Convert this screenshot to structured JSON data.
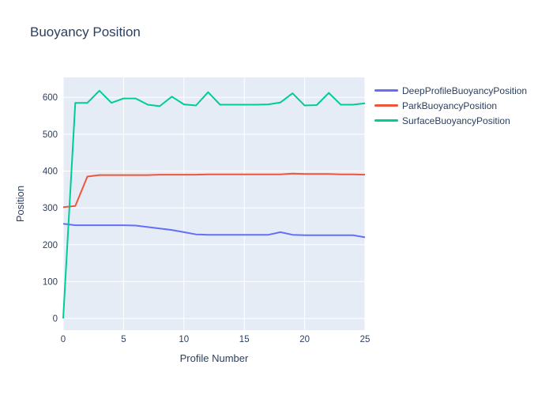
{
  "title": "Buoyancy Position",
  "colors": {
    "text": "#2a3f5f",
    "plot_background": "#E5ECF6",
    "grid": "#FFFFFF",
    "paper_background": "#FFFFFF"
  },
  "chart_data": {
    "type": "line",
    "title": "Buoyancy Position",
    "xlabel": "Profile Number",
    "ylabel": "Position",
    "xlim": [
      0,
      25
    ],
    "ylim": [
      -32,
      654
    ],
    "x_ticks": [
      0,
      5,
      10,
      15,
      20,
      25
    ],
    "y_ticks": [
      0,
      100,
      200,
      300,
      400,
      500,
      600
    ],
    "grid": true,
    "legend_position": "right",
    "x": [
      0,
      1,
      2,
      3,
      4,
      5,
      6,
      7,
      8,
      9,
      10,
      11,
      12,
      13,
      14,
      15,
      16,
      17,
      18,
      19,
      20,
      21,
      22,
      23,
      24,
      25
    ],
    "series": [
      {
        "name": "DeepProfileBuoyancyPosition",
        "color": "#636EFA",
        "values": [
          257,
          253,
          253,
          253,
          253,
          253,
          252,
          248,
          244,
          240,
          234,
          228,
          227,
          227,
          227,
          227,
          227,
          227,
          234,
          227,
          226,
          226,
          226,
          226,
          226,
          220
        ]
      },
      {
        "name": "ParkBuoyancyPosition",
        "color": "#EF553B",
        "values": [
          302,
          305,
          385,
          389,
          389,
          389,
          389,
          389,
          390,
          390,
          390,
          390,
          391,
          391,
          391,
          391,
          391,
          391,
          391,
          393,
          392,
          392,
          392,
          391,
          391,
          390
        ]
      },
      {
        "name": "SurfaceBuoyancyPosition",
        "color": "#00CC96",
        "values": [
          0,
          585,
          585,
          618,
          585,
          597,
          597,
          580,
          576,
          602,
          581,
          578,
          614,
          580,
          580,
          580,
          580,
          581,
          586,
          611,
          578,
          579,
          612,
          580,
          580,
          584
        ]
      }
    ]
  }
}
